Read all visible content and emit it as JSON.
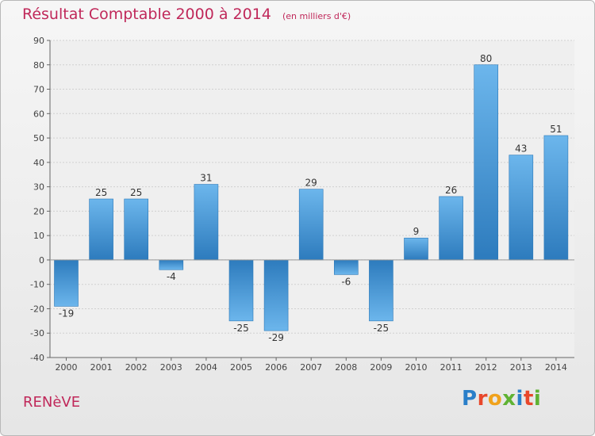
{
  "header": {
    "title": "Résultat Comptable 2000 à 2014",
    "unit": "(en milliers d'€)"
  },
  "footer": {
    "commune": "RENèVE",
    "logo_text": "Proxiti",
    "logo_colors": [
      "#2a7fc9",
      "#e8472b",
      "#f0a21c",
      "#5fb233",
      "#2a7fc9",
      "#e8472b",
      "#5fb233"
    ]
  },
  "colors": {
    "title": "#c0285a",
    "bar_dark": "#2d7bbd",
    "bar_light": "#6cb6ec",
    "axis": "#555555"
  },
  "chart_data": {
    "type": "bar",
    "title": "Résultat Comptable 2000 à 2014",
    "xlabel": "",
    "ylabel": "",
    "categories": [
      "2000",
      "2001",
      "2002",
      "2003",
      "2004",
      "2005",
      "2006",
      "2007",
      "2008",
      "2009",
      "2010",
      "2011",
      "2012",
      "2013",
      "2014"
    ],
    "values": [
      -19,
      25,
      25,
      -4,
      31,
      -25,
      -29,
      29,
      -6,
      -25,
      9,
      26,
      80,
      43,
      51
    ],
    "data_labels": [
      "-19",
      "25",
      "25",
      "-4",
      "31",
      "-25",
      "-29",
      "29",
      "-6",
      "-25",
      "9",
      "26",
      "80",
      "43",
      "51"
    ],
    "ylim": [
      -40,
      90
    ],
    "yticks": [
      -40,
      -30,
      -20,
      -10,
      0,
      10,
      20,
      30,
      40,
      50,
      60,
      70,
      80,
      90
    ],
    "ytick_labels": [
      "-40",
      "-30",
      "-20",
      "-10",
      "0",
      "10",
      "20",
      "30",
      "40",
      "50",
      "60",
      "70",
      "80",
      "90"
    ],
    "grid": true
  }
}
